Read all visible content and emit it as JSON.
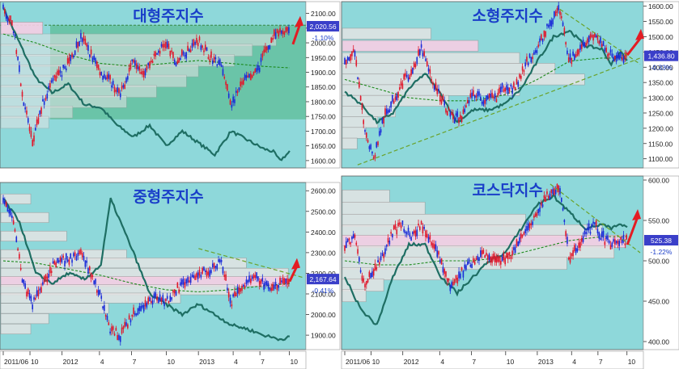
{
  "colors": {
    "panel_bg": "#8ED8DA",
    "axis_bg": "#FFFFFF",
    "candle_up": "#E0182C",
    "candle_down": "#1A2BD8",
    "overlay_line": "#1E6E63",
    "ma_line": "#1C8A1C",
    "trend_line": "#6AA22A",
    "vp_box": "#E4E4E4",
    "vp_box_hi": "#F7CFE4",
    "arrow": "#E31C23",
    "title": "#1A3EC9",
    "price_tag": "#3A3FC9",
    "change_text": "#1A3EC9"
  },
  "x_axis_labels": [
    "2011/06",
    "10",
    "2012",
    "4",
    "7",
    "10",
    "2013",
    "4",
    "7",
    "10"
  ],
  "chart_data": [
    {
      "type": "candlestick",
      "title": "대형주지수",
      "price_tag": "2,020.56",
      "change": "-1.10%",
      "y_ticks": [
        "2100.00",
        "2050.00",
        "2000.00",
        "1950.00",
        "1900.00",
        "1850.00",
        "1800.00",
        "1750.00",
        "1700.00",
        "1650.00",
        "1600.00"
      ],
      "ylim": [
        1575,
        2140
      ],
      "price_path": [
        [
          0,
          2110
        ],
        [
          3,
          2060
        ],
        [
          6,
          1820
        ],
        [
          9,
          1660
        ],
        [
          12,
          1790
        ],
        [
          15,
          1870
        ],
        [
          18,
          1900
        ],
        [
          21,
          1950
        ],
        [
          24,
          2020
        ],
        [
          27,
          1960
        ],
        [
          30,
          1900
        ],
        [
          33,
          1870
        ],
        [
          36,
          1820
        ],
        [
          40,
          1950
        ],
        [
          43,
          1900
        ],
        [
          47,
          1960
        ],
        [
          50,
          2000
        ],
        [
          53,
          1930
        ],
        [
          57,
          1980
        ],
        [
          60,
          2010
        ],
        [
          63,
          1960
        ],
        [
          67,
          1920
        ],
        [
          70,
          1790
        ],
        [
          74,
          1870
        ],
        [
          78,
          1900
        ],
        [
          80,
          1960
        ],
        [
          83,
          2020
        ],
        [
          86,
          2040
        ],
        [
          90,
          2070
        ]
      ],
      "overlay_path": [
        [
          0,
          2120
        ],
        [
          5,
          2000
        ],
        [
          10,
          1880
        ],
        [
          15,
          1830
        ],
        [
          20,
          1860
        ],
        [
          25,
          1790
        ],
        [
          30,
          1780
        ],
        [
          35,
          1720
        ],
        [
          40,
          1680
        ],
        [
          45,
          1720
        ],
        [
          50,
          1650
        ],
        [
          55,
          1700
        ],
        [
          60,
          1660
        ],
        [
          65,
          1620
        ],
        [
          70,
          1700
        ],
        [
          75,
          1670
        ],
        [
          80,
          1640
        ],
        [
          83,
          1630
        ],
        [
          85,
          1600
        ],
        [
          88,
          1630
        ]
      ],
      "ma_path": [
        [
          0,
          2030
        ],
        [
          10,
          2000
        ],
        [
          20,
          1960
        ],
        [
          30,
          1930
        ],
        [
          40,
          1920
        ],
        [
          50,
          1930
        ],
        [
          60,
          1940
        ],
        [
          70,
          1930
        ],
        [
          80,
          1920
        ],
        [
          88,
          1915
        ]
      ],
      "trend_lines": [],
      "volume_profile": [
        {
          "price": 2050,
          "width": 0.14,
          "highlight": true
        },
        {
          "price": 2010,
          "width": 0.92,
          "highlight": false
        },
        {
          "price": 1975,
          "width": 0.84,
          "highlight": false
        },
        {
          "price": 1940,
          "width": 0.78,
          "highlight": false
        },
        {
          "price": 1905,
          "width": 0.66,
          "highlight": false
        },
        {
          "price": 1870,
          "width": 0.62,
          "highlight": false
        },
        {
          "price": 1835,
          "width": 0.52,
          "highlight": false
        },
        {
          "price": 1800,
          "width": 0.42,
          "highlight": false
        },
        {
          "price": 1765,
          "width": 0.24,
          "highlight": false
        },
        {
          "price": 1730,
          "width": 0.16,
          "highlight": false
        }
      ],
      "shaded_zone": [
        1740,
        2060
      ],
      "arrow_from": [
        1995,
        89
      ],
      "arrow_to": [
        2075,
        91
      ]
    },
    {
      "type": "candlestick",
      "title": "소형주지수",
      "price_tag": "1,436.80",
      "change": "-0.33%",
      "y_ticks": [
        "1600.00",
        "1550.00",
        "1500.00",
        "1450.00",
        "1400.00",
        "1350.00",
        "1300.00",
        "1250.00",
        "1200.00",
        "1150.00",
        "1100.00"
      ],
      "ylim": [
        1070,
        1615
      ],
      "price_path": [
        [
          0,
          1420
        ],
        [
          3,
          1450
        ],
        [
          6,
          1210
        ],
        [
          9,
          1100
        ],
        [
          12,
          1230
        ],
        [
          15,
          1290
        ],
        [
          18,
          1350
        ],
        [
          21,
          1390
        ],
        [
          24,
          1460
        ],
        [
          27,
          1360
        ],
        [
          30,
          1300
        ],
        [
          33,
          1240
        ],
        [
          36,
          1230
        ],
        [
          40,
          1320
        ],
        [
          43,
          1290
        ],
        [
          47,
          1300
        ],
        [
          50,
          1340
        ],
        [
          53,
          1330
        ],
        [
          57,
          1420
        ],
        [
          60,
          1460
        ],
        [
          63,
          1530
        ],
        [
          67,
          1590
        ],
        [
          70,
          1420
        ],
        [
          74,
          1480
        ],
        [
          78,
          1510
        ],
        [
          80,
          1470
        ],
        [
          83,
          1440
        ],
        [
          86,
          1430
        ],
        [
          88,
          1436
        ]
      ],
      "overlay_path": [
        [
          0,
          1320
        ],
        [
          5,
          1280
        ],
        [
          10,
          1220
        ],
        [
          15,
          1250
        ],
        [
          20,
          1330
        ],
        [
          25,
          1380
        ],
        [
          30,
          1310
        ],
        [
          35,
          1220
        ],
        [
          40,
          1260
        ],
        [
          45,
          1260
        ],
        [
          50,
          1280
        ],
        [
          55,
          1330
        ],
        [
          60,
          1420
        ],
        [
          65,
          1500
        ],
        [
          70,
          1520
        ],
        [
          75,
          1470
        ],
        [
          80,
          1460
        ],
        [
          83,
          1410
        ],
        [
          86,
          1450
        ],
        [
          88,
          1420
        ]
      ],
      "ma_path": [
        [
          0,
          1360
        ],
        [
          10,
          1330
        ],
        [
          20,
          1300
        ],
        [
          30,
          1290
        ],
        [
          40,
          1290
        ],
        [
          50,
          1310
        ],
        [
          60,
          1360
        ],
        [
          70,
          1420
        ],
        [
          80,
          1430
        ],
        [
          88,
          1430
        ]
      ],
      "trend_lines": [
        [
          [
            4,
            1080
          ],
          [
            92,
            1430
          ]
        ],
        [
          [
            67,
            1590
          ],
          [
            92,
            1410
          ]
        ]
      ],
      "volume_profile": [
        {
          "price": 1510,
          "width": 0.3,
          "highlight": false
        },
        {
          "price": 1470,
          "width": 0.46,
          "highlight": true
        },
        {
          "price": 1430,
          "width": 0.6,
          "highlight": false
        },
        {
          "price": 1395,
          "width": 0.72,
          "highlight": false
        },
        {
          "price": 1360,
          "width": 0.82,
          "highlight": false
        },
        {
          "price": 1325,
          "width": 0.6,
          "highlight": false
        },
        {
          "price": 1290,
          "width": 0.36,
          "highlight": false
        },
        {
          "price": 1255,
          "width": 0.18,
          "highlight": false
        },
        {
          "price": 1220,
          "width": 0.12,
          "highlight": false
        },
        {
          "price": 1185,
          "width": 0.08,
          "highlight": false
        },
        {
          "price": 1150,
          "width": 0.05,
          "highlight": false
        }
      ],
      "shaded_zone": null,
      "arrow_from": [
        1440,
        88
      ],
      "arrow_to": [
        1510,
        92
      ]
    },
    {
      "type": "candlestick",
      "title": "중형주지수",
      "price_tag": "2,167.64",
      "change": "-0.41%",
      "y_ticks": [
        "2600.00",
        "2500.00",
        "2400.00",
        "2300.00",
        "2200.00",
        "2100.00",
        "2000.00",
        "1900.00"
      ],
      "ylim": [
        1830,
        2640
      ],
      "price_path": [
        [
          0,
          2550
        ],
        [
          3,
          2480
        ],
        [
          6,
          2160
        ],
        [
          9,
          2050
        ],
        [
          12,
          2150
        ],
        [
          15,
          2230
        ],
        [
          18,
          2260
        ],
        [
          21,
          2270
        ],
        [
          24,
          2300
        ],
        [
          27,
          2200
        ],
        [
          30,
          2080
        ],
        [
          33,
          1920
        ],
        [
          36,
          1900
        ],
        [
          40,
          2000
        ],
        [
          43,
          2040
        ],
        [
          47,
          2090
        ],
        [
          50,
          2060
        ],
        [
          53,
          2120
        ],
        [
          57,
          2160
        ],
        [
          60,
          2200
        ],
        [
          63,
          2210
        ],
        [
          67,
          2270
        ],
        [
          70,
          2060
        ],
        [
          74,
          2150
        ],
        [
          78,
          2180
        ],
        [
          80,
          2150
        ],
        [
          83,
          2120
        ],
        [
          86,
          2160
        ],
        [
          88,
          2170
        ]
      ],
      "overlay_path": [
        [
          0,
          2560
        ],
        [
          5,
          2450
        ],
        [
          10,
          2200
        ],
        [
          15,
          2150
        ],
        [
          20,
          2200
        ],
        [
          25,
          2170
        ],
        [
          30,
          2240
        ],
        [
          33,
          2560
        ],
        [
          36,
          2450
        ],
        [
          40,
          2300
        ],
        [
          45,
          2100
        ],
        [
          50,
          2050
        ],
        [
          55,
          2000
        ],
        [
          60,
          2050
        ],
        [
          65,
          2000
        ],
        [
          70,
          1950
        ],
        [
          75,
          1930
        ],
        [
          80,
          1900
        ],
        [
          85,
          1880
        ],
        [
          88,
          1890
        ]
      ],
      "ma_path": [
        [
          0,
          2260
        ],
        [
          10,
          2250
        ],
        [
          20,
          2220
        ],
        [
          30,
          2190
        ],
        [
          40,
          2150
        ],
        [
          50,
          2120
        ],
        [
          60,
          2110
        ],
        [
          70,
          2120
        ],
        [
          80,
          2140
        ],
        [
          88,
          2150
        ]
      ],
      "trend_lines": [
        [
          [
            60,
            2320
          ],
          [
            92,
            2180
          ]
        ]
      ],
      "volume_profile": [
        {
          "price": 2560,
          "width": 0.1,
          "highlight": false
        },
        {
          "price": 2470,
          "width": 0.16,
          "highlight": false
        },
        {
          "price": 2380,
          "width": 0.22,
          "highlight": false
        },
        {
          "price": 2290,
          "width": 0.42,
          "highlight": false
        },
        {
          "price": 2250,
          "width": 0.82,
          "highlight": false
        },
        {
          "price": 2200,
          "width": 0.96,
          "highlight": false
        },
        {
          "price": 2160,
          "width": 0.96,
          "highlight": true
        },
        {
          "price": 2120,
          "width": 0.78,
          "highlight": false
        },
        {
          "price": 2080,
          "width": 0.6,
          "highlight": false
        },
        {
          "price": 2030,
          "width": 0.36,
          "highlight": false
        },
        {
          "price": 1980,
          "width": 0.16,
          "highlight": false
        },
        {
          "price": 1930,
          "width": 0.1,
          "highlight": false
        }
      ],
      "shaded_zone": null,
      "arrow_from": [
        2160,
        88
      ],
      "arrow_to": [
        2250,
        90
      ]
    },
    {
      "type": "candlestick",
      "title": "코스닥지수",
      "price_tag": "525.38",
      "change": "-1.22%",
      "y_ticks": [
        "600.00",
        "550.00",
        "500.00",
        "450.00",
        "400.00"
      ],
      "ylim": [
        390,
        605
      ],
      "price_path": [
        [
          0,
          520
        ],
        [
          3,
          530
        ],
        [
          6,
          470
        ],
        [
          9,
          485
        ],
        [
          12,
          510
        ],
        [
          15,
          535
        ],
        [
          18,
          545
        ],
        [
          21,
          530
        ],
        [
          24,
          545
        ],
        [
          27,
          520
        ],
        [
          30,
          500
        ],
        [
          33,
          470
        ],
        [
          36,
          485
        ],
        [
          40,
          500
        ],
        [
          43,
          510
        ],
        [
          47,
          505
        ],
        [
          50,
          500
        ],
        [
          53,
          515
        ],
        [
          57,
          540
        ],
        [
          60,
          560
        ],
        [
          63,
          580
        ],
        [
          67,
          590
        ],
        [
          70,
          500
        ],
        [
          74,
          530
        ],
        [
          78,
          545
        ],
        [
          80,
          530
        ],
        [
          83,
          520
        ],
        [
          86,
          525
        ],
        [
          88,
          525
        ]
      ],
      "overlay_path": [
        [
          0,
          480
        ],
        [
          5,
          440
        ],
        [
          10,
          420
        ],
        [
          15,
          480
        ],
        [
          20,
          520
        ],
        [
          25,
          520
        ],
        [
          30,
          480
        ],
        [
          35,
          460
        ],
        [
          40,
          480
        ],
        [
          45,
          500
        ],
        [
          50,
          510
        ],
        [
          55,
          540
        ],
        [
          60,
          570
        ],
        [
          65,
          580
        ],
        [
          70,
          560
        ],
        [
          75,
          540
        ],
        [
          80,
          545
        ],
        [
          83,
          540
        ],
        [
          86,
          545
        ],
        [
          88,
          540
        ]
      ],
      "ma_path": [
        [
          0,
          500
        ],
        [
          10,
          495
        ],
        [
          20,
          495
        ],
        [
          30,
          500
        ],
        [
          40,
          500
        ],
        [
          50,
          505
        ],
        [
          60,
          515
        ],
        [
          70,
          525
        ],
        [
          80,
          530
        ],
        [
          88,
          530
        ]
      ],
      "trend_lines": [
        [
          [
            64,
            595
          ],
          [
            92,
            510
          ]
        ]
      ],
      "volume_profile": [
        {
          "price": 580,
          "width": 0.16,
          "highlight": false
        },
        {
          "price": 565,
          "width": 0.28,
          "highlight": false
        },
        {
          "price": 550,
          "width": 0.62,
          "highlight": false
        },
        {
          "price": 537,
          "width": 0.88,
          "highlight": false
        },
        {
          "price": 524,
          "width": 0.96,
          "highlight": true
        },
        {
          "price": 511,
          "width": 0.92,
          "highlight": false
        },
        {
          "price": 497,
          "width": 0.76,
          "highlight": false
        },
        {
          "price": 484,
          "width": 0.4,
          "highlight": false
        },
        {
          "price": 470,
          "width": 0.14,
          "highlight": false
        },
        {
          "price": 457,
          "width": 0.08,
          "highlight": false
        }
      ],
      "shaded_zone": null,
      "arrow_from": [
        520,
        88
      ],
      "arrow_to": [
        558,
        91
      ]
    }
  ]
}
